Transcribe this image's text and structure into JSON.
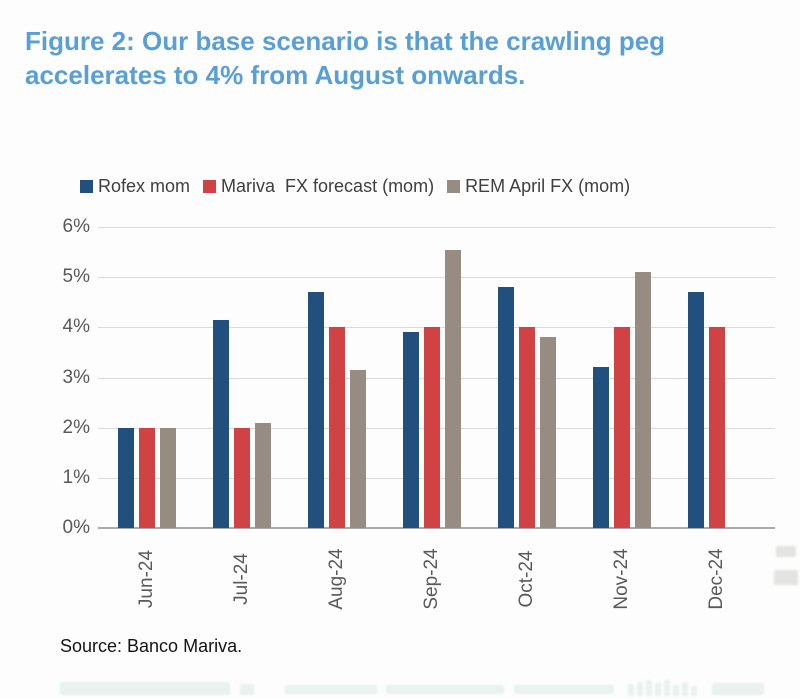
{
  "title": {
    "line1": "Figure 2: Our base scenario is that the crawling peg",
    "line2": "accelerates to 4% from August onwards.",
    "color": "#589fd8"
  },
  "source": "Source: Banco Mariva.",
  "colors": {
    "rofex_blue": "#21507e",
    "mariva_red": "#d04243",
    "rem_gray": "#978c82",
    "gridline": "#dadada",
    "axis_line": "#a9a9a9",
    "tick_text": "#595959"
  },
  "chart_data": {
    "type": "bar",
    "categories": [
      "Jun-24",
      "Jul-24",
      "Aug-24",
      "Sep-24",
      "Oct-24",
      "Nov-24",
      "Dec-24"
    ],
    "series": [
      {
        "name": "Rofex mom",
        "color": "#21507e",
        "values": [
          2.0,
          4.15,
          4.7,
          3.9,
          4.8,
          3.2,
          4.7
        ]
      },
      {
        "name": "Mariva  FX forecast (mom)",
        "color": "#d04243",
        "values": [
          2.0,
          2.0,
          4.0,
          4.0,
          4.0,
          4.0,
          4.0
        ]
      },
      {
        "name": "REM April FX (mom)",
        "color": "#978c82",
        "values": [
          2.0,
          2.1,
          3.15,
          5.55,
          3.8,
          5.1,
          null
        ]
      }
    ],
    "title": "Figure 2: Our base scenario is that the crawling peg accelerates to 4% from August onwards.",
    "xlabel": "",
    "ylabel": "",
    "ylim": [
      0,
      6
    ],
    "ytick_labels": [
      "0%",
      "1%",
      "2%",
      "3%",
      "4%",
      "5%",
      "6%"
    ],
    "grid": true,
    "legend_position": "top"
  }
}
